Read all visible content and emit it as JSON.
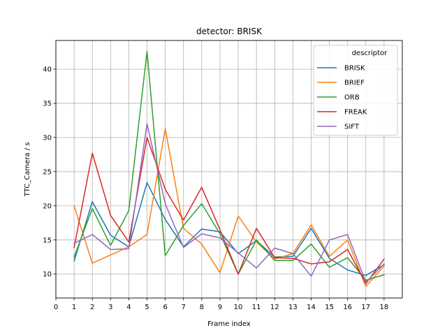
{
  "chart_data": {
    "type": "line",
    "title": "detector: BRISK",
    "xlabel": "Frame index",
    "ylabel": "TTC_Camera / s",
    "xlim": [
      0,
      19
    ],
    "ylim": [
      6.5,
      44.2
    ],
    "xticks": [
      0,
      1,
      2,
      3,
      4,
      5,
      6,
      7,
      8,
      9,
      10,
      11,
      12,
      13,
      14,
      15,
      16,
      17,
      18
    ],
    "yticks": [
      10,
      15,
      20,
      25,
      30,
      35,
      40
    ],
    "grid": true,
    "legend": {
      "title": "descriptor",
      "placement": "top-right"
    },
    "x": [
      1,
      2,
      3,
      4,
      5,
      6,
      7,
      8,
      9,
      10,
      11,
      12,
      13,
      14,
      15,
      16,
      17,
      18
    ],
    "series": [
      {
        "name": "BRISK",
        "color": "#1f77b4",
        "values": [
          11.9,
          20.6,
          15.7,
          14.0,
          23.4,
          18.0,
          14.0,
          16.6,
          16.2,
          13.0,
          14.9,
          12.5,
          12.6,
          16.7,
          12.3,
          10.6,
          9.8,
          11.4
        ]
      },
      {
        "name": "BRIEF",
        "color": "#ff7f0e",
        "values": [
          20.0,
          11.6,
          12.8,
          14.0,
          15.8,
          31.3,
          16.7,
          14.4,
          10.2,
          18.5,
          14.7,
          12.2,
          13.0,
          17.2,
          12.6,
          15.0,
          8.2,
          11.2
        ]
      },
      {
        "name": "ORB",
        "color": "#2ca02c",
        "values": [
          12.5,
          19.6,
          14.2,
          19.3,
          42.6,
          12.7,
          17.1,
          20.3,
          15.9,
          10.0,
          15.0,
          12.0,
          12.0,
          14.4,
          11.0,
          12.4,
          9.1,
          9.9
        ]
      },
      {
        "name": "FREAK",
        "color": "#d62728",
        "values": [
          13.9,
          27.7,
          18.6,
          14.7,
          30.0,
          22.4,
          17.9,
          22.7,
          16.5,
          10.0,
          16.7,
          12.4,
          12.3,
          11.5,
          11.8,
          13.6,
          8.6,
          12.2
        ]
      },
      {
        "name": "SIFT",
        "color": "#9467bd",
        "values": [
          14.5,
          15.8,
          13.6,
          13.7,
          32.0,
          20.3,
          13.9,
          15.9,
          15.3,
          13.1,
          10.9,
          13.8,
          13.0,
          9.7,
          15.0,
          15.8,
          8.8,
          11.5
        ]
      }
    ]
  }
}
